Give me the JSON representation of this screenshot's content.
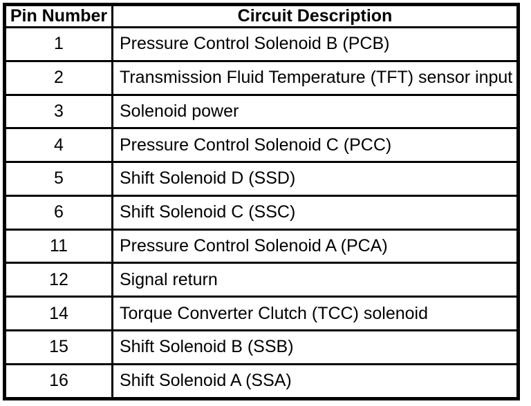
{
  "table": {
    "headers": {
      "pin": "Pin Number",
      "description": "Circuit Description"
    },
    "rows": [
      {
        "pin": "1",
        "description": "Pressure Control Solenoid B (PCB)"
      },
      {
        "pin": "2",
        "description": "Transmission Fluid Temperature (TFT) sensor input"
      },
      {
        "pin": "3",
        "description": "Solenoid power"
      },
      {
        "pin": "4",
        "description": "Pressure Control Solenoid C (PCC)"
      },
      {
        "pin": "5",
        "description": "Shift Solenoid D (SSD)"
      },
      {
        "pin": "6",
        "description": "Shift Solenoid C (SSC)"
      },
      {
        "pin": "11",
        "description": "Pressure Control Solenoid A (PCA)"
      },
      {
        "pin": "12",
        "description": "Signal return"
      },
      {
        "pin": "14",
        "description": "Torque Converter Clutch (TCC) solenoid"
      },
      {
        "pin": "15",
        "description": "Shift Solenoid B (SSB)"
      },
      {
        "pin": "16",
        "description": "Shift Solenoid A (SSA)"
      }
    ],
    "colors": {
      "border": "#000000",
      "text": "#000000",
      "background": "#ffffff"
    }
  }
}
